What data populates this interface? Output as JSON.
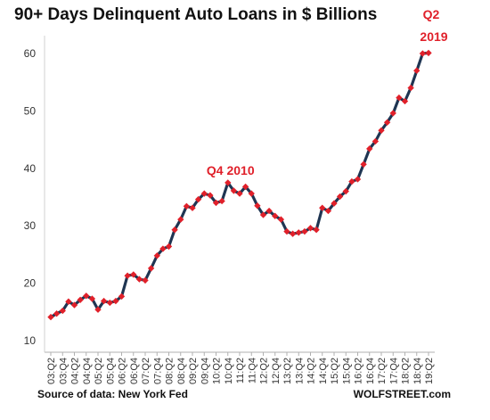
{
  "chart_data": {
    "type": "line",
    "title": "90+ Days Delinquent Auto Loans in $ Billions",
    "xlabel": "",
    "ylabel": "",
    "ylim": [
      10,
      60
    ],
    "yticks": [
      10,
      20,
      30,
      40,
      50,
      60
    ],
    "grid": false,
    "legend": "none",
    "x_tick_labels": [
      "03:Q2",
      "03:Q4",
      "04:Q2",
      "04:Q4",
      "05:Q2",
      "05:Q4",
      "06:Q2",
      "06:Q4",
      "07:Q2",
      "07:Q4",
      "08:Q2",
      "08:Q4",
      "09:Q2",
      "09:Q4",
      "10:Q2",
      "10:Q4",
      "11:Q2",
      "11:Q4",
      "12:Q2",
      "12:Q4",
      "13:Q2",
      "13:Q4",
      "14:Q2",
      "14:Q4",
      "15:Q2",
      "15:Q4",
      "16:Q2",
      "16:Q4",
      "17:Q2",
      "17:Q4",
      "18:Q2",
      "18:Q4",
      "19:Q2"
    ],
    "series": [
      {
        "name": "",
        "color": "#1f3552",
        "marker_color": "#e0202a",
        "x": [
          "03:Q2",
          "03:Q3",
          "03:Q4",
          "04:Q1",
          "04:Q2",
          "04:Q3",
          "04:Q4",
          "05:Q1",
          "05:Q2",
          "05:Q3",
          "05:Q4",
          "06:Q1",
          "06:Q2",
          "06:Q3",
          "06:Q4",
          "07:Q1",
          "07:Q2",
          "07:Q3",
          "07:Q4",
          "08:Q1",
          "08:Q2",
          "08:Q3",
          "08:Q4",
          "09:Q1",
          "09:Q2",
          "09:Q3",
          "09:Q4",
          "10:Q1",
          "10:Q2",
          "10:Q3",
          "10:Q4",
          "11:Q1",
          "11:Q2",
          "11:Q3",
          "11:Q4",
          "12:Q1",
          "12:Q2",
          "12:Q3",
          "12:Q4",
          "13:Q1",
          "13:Q2",
          "13:Q3",
          "13:Q4",
          "14:Q1",
          "14:Q2",
          "14:Q3",
          "14:Q4",
          "15:Q1",
          "15:Q2",
          "15:Q3",
          "15:Q4",
          "16:Q1",
          "16:Q2",
          "16:Q3",
          "16:Q4",
          "17:Q1",
          "17:Q2",
          "17:Q3",
          "17:Q4",
          "18:Q1",
          "18:Q2",
          "18:Q3",
          "18:Q4",
          "19:Q1",
          "19:Q2"
        ],
        "values": [
          14.1,
          14.7,
          15.2,
          16.8,
          16.2,
          17.1,
          17.8,
          17.3,
          15.4,
          16.9,
          16.6,
          16.9,
          17.7,
          21.3,
          21.5,
          20.7,
          20.5,
          22.6,
          24.8,
          26.0,
          26.4,
          29.3,
          31.1,
          33.4,
          33.1,
          34.6,
          35.6,
          35.3,
          34.0,
          34.3,
          37.5,
          36.1,
          35.6,
          36.8,
          35.6,
          33.5,
          31.9,
          32.6,
          31.7,
          31.1,
          29.0,
          28.6,
          28.8,
          29.0,
          29.6,
          29.3,
          33.1,
          32.6,
          33.9,
          35.1,
          36.0,
          37.7,
          38.1,
          40.7,
          43.4,
          44.7,
          46.6,
          48.0,
          49.6,
          52.3,
          51.7,
          54.0,
          57.0,
          60.0,
          60.1
        ]
      }
    ],
    "annotations": [
      {
        "text": "Q4 2010",
        "at": "10:Q4"
      },
      {
        "text": "Q2",
        "at": "19:Q2"
      },
      {
        "text": "2019",
        "at": "19:Q2"
      }
    ]
  },
  "footer": {
    "source": "Source of data: New York Fed",
    "brand": "WOLFSTREET.com"
  }
}
